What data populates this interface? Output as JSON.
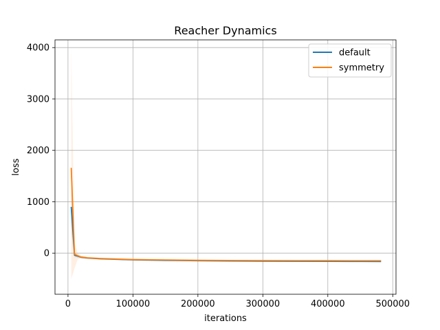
{
  "chart_data": {
    "type": "line",
    "title": "Reacher Dynamics",
    "xlabel": "iterations",
    "ylabel": "loss",
    "xlim": [
      -20000,
      505000
    ],
    "ylim": [
      -800,
      4150
    ],
    "xticks": [
      0,
      100000,
      200000,
      300000,
      400000,
      500000
    ],
    "xtick_labels": [
      "0",
      "100000",
      "200000",
      "300000",
      "400000",
      "500000"
    ],
    "yticks": [
      0,
      1000,
      2000,
      3000,
      4000
    ],
    "ytick_labels": [
      "0",
      "1000",
      "2000",
      "3000",
      "4000"
    ],
    "grid": true,
    "legend_position": "top-right",
    "series": [
      {
        "name": "default",
        "color": "#1f77b4",
        "x": [
          5000,
          10000,
          15000,
          20000,
          30000,
          50000,
          75000,
          100000,
          150000,
          200000,
          250000,
          300000,
          350000,
          400000,
          450000,
          482000
        ],
        "y": [
          900,
          -40,
          -60,
          -80,
          -95,
          -110,
          -120,
          -130,
          -140,
          -148,
          -152,
          -156,
          -158,
          -160,
          -161,
          -162
        ],
        "band_upper": [
          1400,
          0,
          -30,
          -60,
          -80,
          -98,
          -110,
          -120,
          -130,
          -138,
          -142,
          -146,
          -148,
          -150,
          -151,
          -152
        ],
        "band_lower": [
          400,
          -80,
          -90,
          -100,
          -110,
          -122,
          -130,
          -140,
          -150,
          -158,
          -162,
          -166,
          -168,
          -170,
          -171,
          -172
        ]
      },
      {
        "name": "symmetry",
        "color": "#ff7f0e",
        "x": [
          5000,
          10000,
          15000,
          20000,
          30000,
          50000,
          75000,
          100000,
          150000,
          200000,
          250000,
          300000,
          350000,
          400000,
          450000,
          482000
        ],
        "y": [
          1660,
          -20,
          -50,
          -75,
          -92,
          -105,
          -115,
          -125,
          -133,
          -140,
          -143,
          -145,
          -146,
          -147,
          -148,
          -148
        ],
        "band_upper": [
          4000,
          200,
          0,
          -50,
          -75,
          -92,
          -104,
          -114,
          -122,
          -130,
          -133,
          -135,
          -136,
          -137,
          -138,
          -138
        ],
        "band_lower": [
          -500,
          -300,
          -120,
          -100,
          -108,
          -118,
          -126,
          -136,
          -144,
          -150,
          -153,
          -155,
          -156,
          -157,
          -158,
          -158
        ]
      }
    ]
  }
}
